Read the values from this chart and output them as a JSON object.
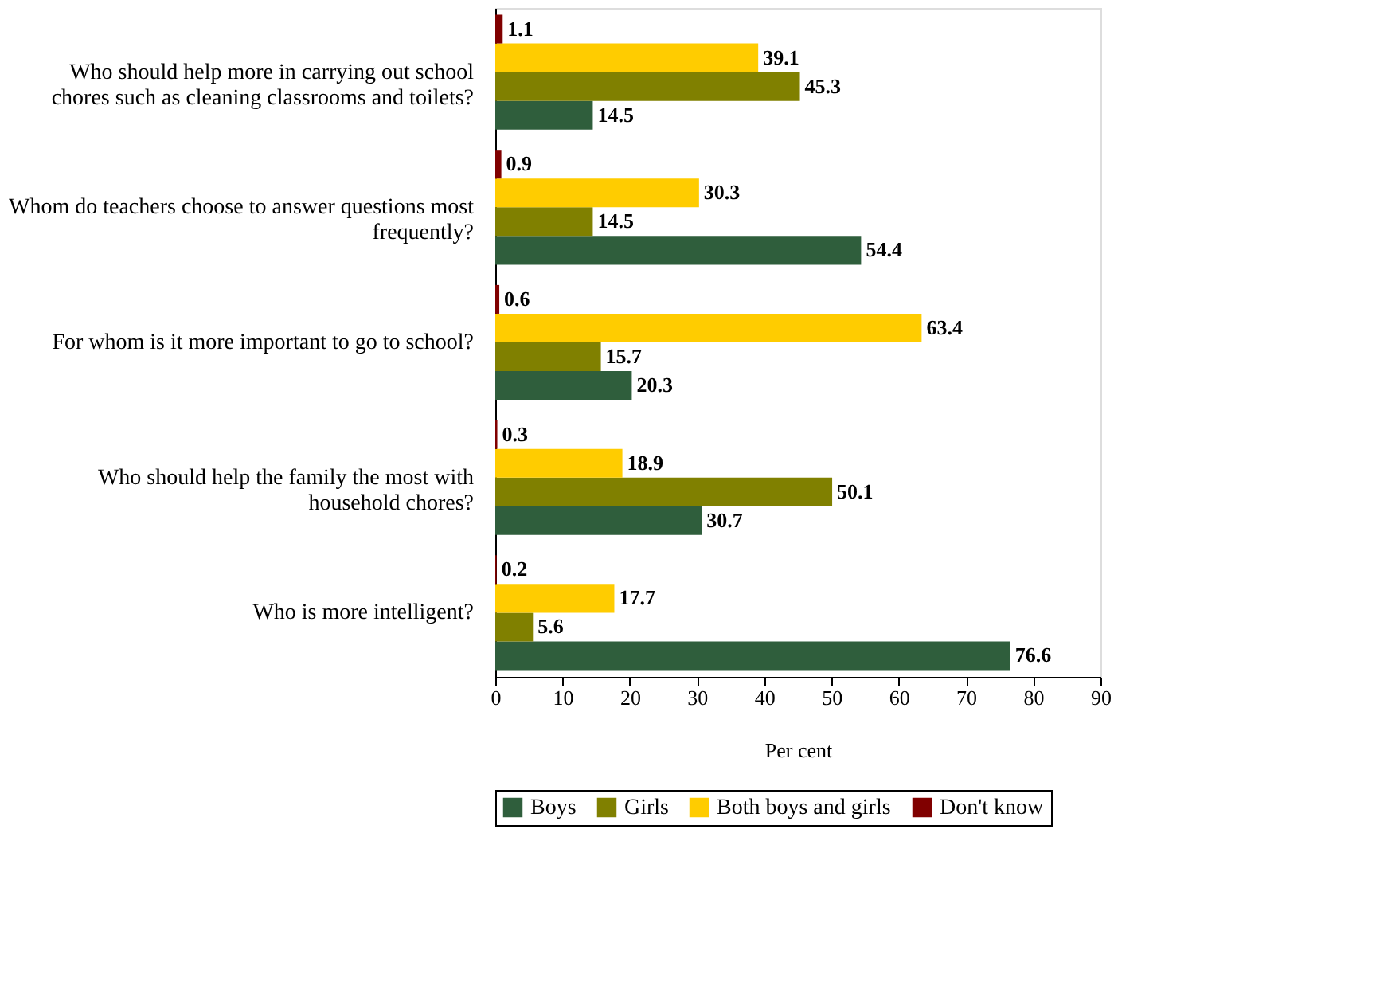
{
  "chart_data": {
    "type": "bar",
    "orientation": "horizontal",
    "xlabel": "Per cent",
    "categories": [
      "Who should help more in carrying out school chores such as cleaning classrooms and toilets?",
      "Whom do teachers choose to answer questions most frequently?",
      "For whom is it more important to go to school?",
      "Who should help the family the most with household chores?",
      "Who is more intelligent?"
    ],
    "series": [
      {
        "name": "Boys",
        "color": "#2f5e3c",
        "values": [
          14.5,
          54.4,
          20.3,
          30.7,
          76.6
        ]
      },
      {
        "name": "Girls",
        "color": "#808000",
        "values": [
          45.3,
          14.5,
          15.7,
          50.1,
          5.6
        ]
      },
      {
        "name": "Both boys and girls",
        "color": "#ffcc00",
        "values": [
          39.1,
          30.3,
          63.4,
          18.9,
          17.7
        ]
      },
      {
        "name": "Don't know",
        "color": "#800000",
        "values": [
          1.1,
          0.9,
          0.6,
          0.3,
          0.2
        ]
      }
    ],
    "xlim": [
      0,
      90
    ],
    "xticks": [
      0,
      10,
      20,
      30,
      40,
      50,
      60,
      70,
      80,
      90
    ],
    "grid": false,
    "legend": "bottom",
    "data_labels": true
  }
}
